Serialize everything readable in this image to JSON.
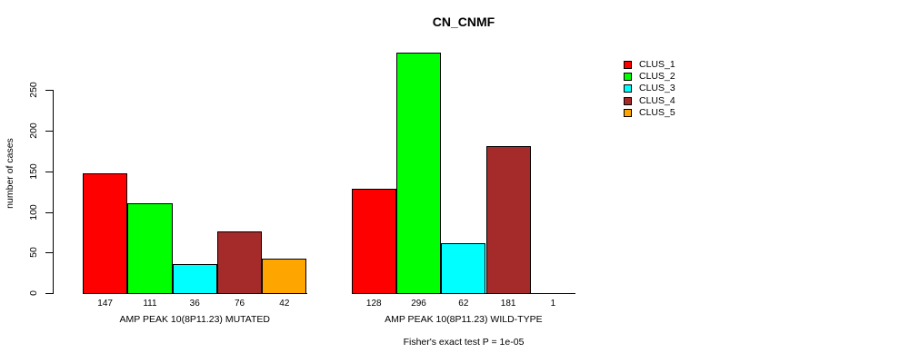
{
  "chart_data": {
    "type": "bar",
    "title": "CN_CNMF",
    "ylabel": "number of cases",
    "xlabel": "",
    "annotation": "Fisher's exact test P = 1e-05",
    "ylim": [
      0,
      250
    ],
    "yticks": [
      0,
      50,
      100,
      150,
      200,
      250
    ],
    "grid": false,
    "legend_position": "right",
    "axis_color": "#000000",
    "bar_border_color": "#000000",
    "groups": [
      {
        "label": "AMP PEAK 10(8P11.23) MUTATED",
        "values": [
          147,
          111,
          36,
          76,
          42
        ]
      },
      {
        "label": "AMP PEAK 10(8P11.23) WILD-TYPE",
        "values": [
          128,
          296,
          62,
          181,
          1
        ]
      }
    ],
    "series": [
      {
        "name": "CLUS_1",
        "color": "#FF0000"
      },
      {
        "name": "CLUS_2",
        "color": "#00FF00"
      },
      {
        "name": "CLUS_3",
        "color": "#00FFFF"
      },
      {
        "name": "CLUS_4",
        "color": "#A52A2A"
      },
      {
        "name": "CLUS_5",
        "color": "#FFA500"
      }
    ]
  }
}
